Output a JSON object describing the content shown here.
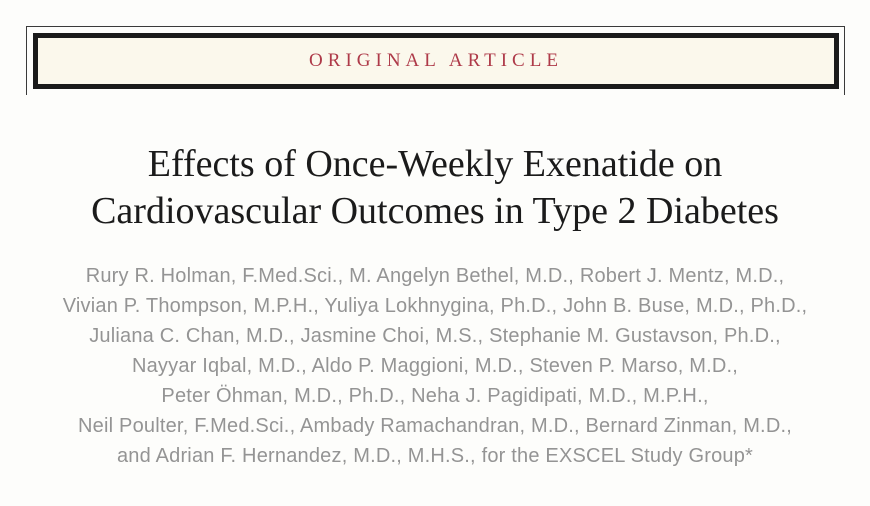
{
  "banner": {
    "label": "ORIGINAL ARTICLE"
  },
  "title": {
    "line1": "Effects of Once-Weekly Exenatide on",
    "line2": "Cardiovascular Outcomes in Type 2 Diabetes"
  },
  "authors": {
    "lines": [
      "Rury R. Holman, F.Med.Sci., M. Angelyn Bethel, M.D., Robert J. Mentz, M.D.,",
      "Vivian P. Thompson, M.P.H., Yuliya Lokhnygina, Ph.D., John B. Buse, M.D., Ph.D.,",
      "Juliana C. Chan, M.D., Jasmine Choi, M.S., Stephanie M. Gustavson, Ph.D.,",
      "Nayyar Iqbal, M.D., Aldo P. Maggioni, M.D., Steven P. Marso, M.D.,",
      "Peter Öhman, M.D., Ph.D., Neha J. Pagidipati, M.D., M.P.H.,",
      "Neil Poulter, F.Med.Sci., Ambady Ramachandran, M.D., Bernard Zinman, M.D.,",
      "and Adrian F. Hernandez, M.D., M.H.S., for the EXSCEL Study Group*"
    ]
  },
  "colors": {
    "banner_text": "#ae3a49",
    "banner_border": "#1a1a1a",
    "frame_line": "#3a3a3a",
    "banner_bg": "#fbf8ec",
    "page_bg": "#fdfdfb",
    "title_text": "#1b1b1b",
    "authors_text": "#949494"
  }
}
